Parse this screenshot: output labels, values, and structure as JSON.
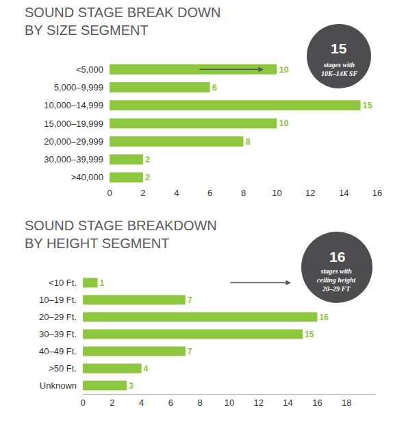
{
  "chart_data": [
    {
      "type": "bar",
      "orientation": "horizontal",
      "title": "SOUND STAGE BREAK DOWN BY SIZE SEGMENT",
      "categories": [
        "<5,000",
        "5,000–9,999",
        "10,000–14,999",
        "15,000–19,999",
        "20,000–29,999",
        "30,000–39,999",
        ">40,000"
      ],
      "values": [
        10,
        6,
        15,
        10,
        8,
        2,
        2
      ],
      "color": "#8dc63f",
      "xlim": [
        0,
        16
      ],
      "xticks": [
        0,
        2,
        4,
        6,
        8,
        10,
        12,
        14,
        16
      ],
      "grid": false,
      "data_labels": true,
      "annotations": [
        "15",
        "stages with 10K–14K SF"
      ]
    },
    {
      "type": "bar",
      "orientation": "horizontal",
      "title": "SOUND STAGE BREAKDOWN BY HEIGHT SEGMENT",
      "categories": [
        "<10 Ft.",
        "10–19 Ft.",
        "20–29 Ft.",
        "30–39 Ft.",
        "40–49 Ft.",
        ">50 Ft.",
        "Unknown"
      ],
      "values": [
        1,
        7,
        16,
        15,
        7,
        4,
        3
      ],
      "color": "#8dc63f",
      "xlim": [
        0,
        20
      ],
      "xticks": [
        0,
        2,
        4,
        6,
        8,
        10,
        12,
        14,
        16,
        18
      ],
      "grid": false,
      "data_labels": true,
      "annotations": [
        "16",
        "stages with ceiling height 20–29 FT"
      ]
    }
  ]
}
